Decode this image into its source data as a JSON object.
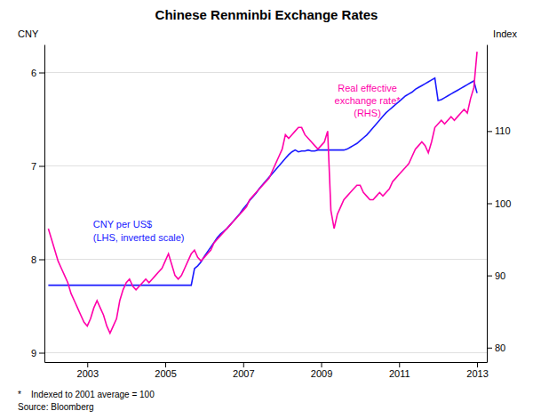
{
  "chart_data": {
    "type": "line",
    "title": "Chinese Renminbi Exchange Rates",
    "ylabel": "CNY",
    "y2label": "Index",
    "annotations": [
      "CNY per US$\n(LHS, inverted scale)",
      "Real effective\nexchange rate*\n(RHS)"
    ],
    "notes": [
      "*    Indexed to 2001 average = 100",
      "Source: Bloomberg"
    ],
    "x": [
      2002.0,
      2002.083,
      2002.167,
      2002.25,
      2002.333,
      2002.417,
      2002.5,
      2002.583,
      2002.667,
      2002.75,
      2002.833,
      2002.917,
      2003.0,
      2003.083,
      2003.167,
      2003.25,
      2003.333,
      2003.417,
      2003.5,
      2003.583,
      2003.667,
      2003.75,
      2003.833,
      2003.917,
      2004.0,
      2004.083,
      2004.167,
      2004.25,
      2004.333,
      2004.417,
      2004.5,
      2004.583,
      2004.667,
      2004.75,
      2004.833,
      2004.917,
      2005.0,
      2005.083,
      2005.167,
      2005.25,
      2005.333,
      2005.417,
      2005.5,
      2005.583,
      2005.667,
      2005.75,
      2005.833,
      2005.917,
      2006.0,
      2006.083,
      2006.167,
      2006.25,
      2006.333,
      2006.417,
      2006.5,
      2006.583,
      2006.667,
      2006.75,
      2006.833,
      2006.917,
      2007.0,
      2007.083,
      2007.167,
      2007.25,
      2007.333,
      2007.417,
      2007.5,
      2007.583,
      2007.667,
      2007.75,
      2007.833,
      2007.917,
      2008.0,
      2008.083,
      2008.167,
      2008.25,
      2008.333,
      2008.417,
      2008.5,
      2008.583,
      2008.667,
      2008.75,
      2008.833,
      2008.917,
      2009.0,
      2009.083,
      2009.167,
      2009.25,
      2009.333,
      2009.417,
      2009.5,
      2009.583,
      2009.667,
      2009.75,
      2009.833,
      2009.917,
      2010.0,
      2010.083,
      2010.167,
      2010.25,
      2010.333,
      2010.417,
      2010.5,
      2010.583,
      2010.667,
      2010.75,
      2010.833,
      2010.917,
      2011.0,
      2011.083,
      2011.167,
      2011.25,
      2011.333,
      2011.417,
      2011.5,
      2011.583,
      2011.667,
      2011.75,
      2011.833,
      2011.917,
      2012.0,
      2012.083,
      2012.167,
      2012.25,
      2012.333,
      2012.417,
      2012.5,
      2012.583,
      2012.667,
      2012.75,
      2012.833,
      2012.917,
      2013.0
    ],
    "series": [
      {
        "color": "#1a1aff",
        "axis": "y",
        "values": [
          8.277,
          8.277,
          8.277,
          8.277,
          8.277,
          8.277,
          8.277,
          8.277,
          8.277,
          8.277,
          8.277,
          8.277,
          8.277,
          8.277,
          8.277,
          8.277,
          8.277,
          8.277,
          8.277,
          8.277,
          8.277,
          8.277,
          8.277,
          8.277,
          8.277,
          8.277,
          8.277,
          8.277,
          8.277,
          8.277,
          8.277,
          8.277,
          8.277,
          8.277,
          8.277,
          8.277,
          8.277,
          8.277,
          8.277,
          8.277,
          8.277,
          8.277,
          8.277,
          8.277,
          8.277,
          8.1,
          8.07,
          8.03,
          7.97,
          7.92,
          7.87,
          7.82,
          7.77,
          7.73,
          7.7,
          7.67,
          7.63,
          7.59,
          7.55,
          7.51,
          7.46,
          7.42,
          7.37,
          7.33,
          7.29,
          7.24,
          7.2,
          7.16,
          7.12,
          7.08,
          7.04,
          7.0,
          6.96,
          6.92,
          6.88,
          6.85,
          6.83,
          6.85,
          6.84,
          6.84,
          6.83,
          6.84,
          6.84,
          6.83,
          6.83,
          6.83,
          6.83,
          6.83,
          6.83,
          6.83,
          6.83,
          6.83,
          6.82,
          6.8,
          6.78,
          6.76,
          6.73,
          6.7,
          6.67,
          6.63,
          6.59,
          6.55,
          6.51,
          6.47,
          6.43,
          6.4,
          6.37,
          6.34,
          6.31,
          6.28,
          6.25,
          6.23,
          6.21,
          6.18,
          6.16,
          6.14,
          6.12,
          6.1,
          6.08,
          6.06,
          6.3,
          6.29,
          6.27,
          6.25,
          6.23,
          6.21,
          6.19,
          6.17,
          6.15,
          6.13,
          6.11,
          6.09,
          6.22
        ]
      },
      {
        "color": "#ff00aa",
        "axis": "y2",
        "values": [
          96.5,
          95.0,
          93.5,
          92.0,
          91.0,
          90.0,
          89.0,
          87.5,
          86.5,
          85.5,
          84.5,
          83.5,
          83.0,
          84.0,
          85.5,
          86.5,
          85.5,
          84.5,
          83.0,
          82.0,
          83.0,
          84.0,
          86.5,
          88.0,
          89.0,
          89.5,
          88.5,
          88.0,
          88.5,
          89.0,
          89.5,
          89.0,
          89.5,
          90.0,
          90.5,
          91.0,
          92.0,
          93.0,
          91.5,
          90.0,
          89.5,
          90.0,
          91.0,
          92.0,
          93.0,
          93.5,
          92.5,
          92.0,
          92.5,
          93.0,
          93.5,
          94.5,
          95.0,
          95.5,
          96.0,
          96.5,
          97.0,
          97.5,
          98.0,
          98.5,
          99.0,
          99.5,
          100.5,
          101.0,
          101.5,
          102.0,
          102.5,
          103.0,
          103.5,
          104.5,
          105.5,
          106.5,
          107.5,
          109.5,
          109.0,
          109.5,
          110.0,
          110.5,
          110.5,
          109.5,
          109.0,
          108.5,
          108.0,
          107.5,
          108.0,
          108.5,
          110.0,
          99.0,
          96.5,
          98.5,
          99.5,
          100.5,
          101.0,
          101.5,
          102.0,
          102.5,
          102.5,
          101.5,
          101.0,
          100.5,
          100.5,
          101.0,
          101.5,
          101.0,
          101.5,
          102.0,
          103.0,
          103.5,
          104.0,
          104.5,
          105.0,
          105.5,
          106.5,
          107.5,
          108.0,
          108.5,
          108.0,
          107.0,
          108.5,
          110.5,
          111.0,
          111.5,
          111.0,
          111.5,
          112.0,
          111.5,
          112.0,
          112.5,
          113.0,
          112.5,
          114.5,
          116.0,
          121.0
        ]
      }
    ],
    "xlim": [
      2001.9,
      2013.25
    ],
    "xticks": [
      2003,
      2005,
      2007,
      2009,
      2011,
      2013
    ],
    "ylim": [
      9.1,
      5.7
    ],
    "yticks": [
      6,
      7,
      8,
      9
    ],
    "y2lim": [
      78,
      122
    ],
    "y2ticks": [
      80,
      90,
      100,
      110
    ],
    "grid": true
  }
}
